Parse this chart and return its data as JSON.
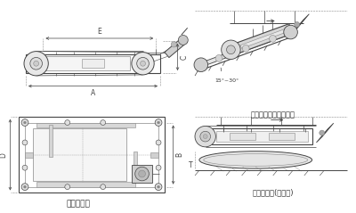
{
  "bg_color": "#ffffff",
  "line_color": "#555555",
  "dark_line": "#444444",
  "mid_gray": "#888888",
  "light_gray": "#bbbbbb",
  "caption_bottom_left": "外形尺寸图",
  "caption_top_right": "安装示意图（傅斜式）",
  "caption_bottom_right": "安装示意图(水平式)",
  "dim_A": "A",
  "dim_E": "E",
  "dim_C": "C",
  "dim_D": "D",
  "dim_B": "B",
  "angle_label": "15°~30°",
  "fig_width": 4.0,
  "fig_height": 2.39,
  "dpi": 100,
  "font_size_dim": 5.5,
  "font_size_caption": 6.5
}
